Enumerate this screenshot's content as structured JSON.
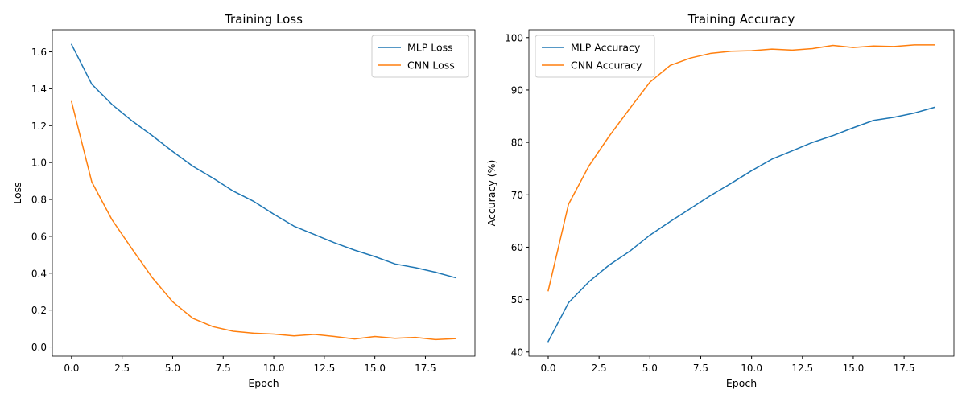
{
  "chart_data": [
    {
      "type": "line",
      "title": "Training Loss",
      "xlabel": "Epoch",
      "ylabel": "Loss",
      "xlim": [
        -0.95,
        19.95
      ],
      "ylim": [
        -0.05,
        1.72
      ],
      "xticks": [
        0.0,
        2.5,
        5.0,
        7.5,
        10.0,
        12.5,
        15.0,
        17.5
      ],
      "xtick_labels": [
        "0.0",
        "2.5",
        "5.0",
        "7.5",
        "10.0",
        "12.5",
        "15.0",
        "17.5"
      ],
      "yticks": [
        0.0,
        0.2,
        0.4,
        0.6,
        0.8,
        1.0,
        1.2,
        1.4,
        1.6
      ],
      "ytick_labels": [
        "0.0",
        "0.2",
        "0.4",
        "0.6",
        "0.8",
        "1.0",
        "1.2",
        "1.4",
        "1.6"
      ],
      "grid": false,
      "legend_position": "top-right",
      "x": [
        0,
        1,
        2,
        3,
        4,
        5,
        6,
        7,
        8,
        9,
        10,
        11,
        12,
        13,
        14,
        15,
        16,
        17,
        18,
        19
      ],
      "series": [
        {
          "name": "MLP Loss",
          "color": "#1f77b4",
          "values": [
            1.64,
            1.425,
            1.315,
            1.225,
            1.145,
            1.06,
            0.98,
            0.915,
            0.845,
            0.79,
            0.72,
            0.655,
            0.61,
            0.565,
            0.525,
            0.49,
            0.45,
            0.43,
            0.405,
            0.375
          ]
        },
        {
          "name": "CNN Loss",
          "color": "#ff7f0e",
          "values": [
            1.33,
            0.895,
            0.69,
            0.53,
            0.375,
            0.245,
            0.155,
            0.11,
            0.085,
            0.075,
            0.07,
            0.06,
            0.068,
            0.057,
            0.043,
            0.057,
            0.047,
            0.052,
            0.04,
            0.045
          ]
        }
      ]
    },
    {
      "type": "line",
      "title": "Training Accuracy",
      "xlabel": "Epoch",
      "ylabel": "Accuracy (%)",
      "xlim": [
        -0.95,
        19.95
      ],
      "ylim": [
        39.2,
        101.5
      ],
      "xticks": [
        0.0,
        2.5,
        5.0,
        7.5,
        10.0,
        12.5,
        15.0,
        17.5
      ],
      "xtick_labels": [
        "0.0",
        "2.5",
        "5.0",
        "7.5",
        "10.0",
        "12.5",
        "15.0",
        "17.5"
      ],
      "yticks": [
        40,
        50,
        60,
        70,
        80,
        90,
        100
      ],
      "ytick_labels": [
        "40",
        "50",
        "60",
        "70",
        "80",
        "90",
        "100"
      ],
      "grid": false,
      "legend_position": "top-left",
      "x": [
        0,
        1,
        2,
        3,
        4,
        5,
        6,
        7,
        8,
        9,
        10,
        11,
        12,
        13,
        14,
        15,
        16,
        17,
        18,
        19
      ],
      "series": [
        {
          "name": "MLP Accuracy",
          "color": "#1f77b4",
          "values": [
            42.0,
            49.4,
            53.4,
            56.6,
            59.2,
            62.3,
            64.9,
            67.4,
            69.9,
            72.2,
            74.6,
            76.8,
            78.4,
            80.0,
            81.3,
            82.8,
            84.2,
            84.8,
            85.6,
            86.7
          ]
        },
        {
          "name": "CNN Accuracy",
          "color": "#ff7f0e",
          "values": [
            51.7,
            68.2,
            75.5,
            81.2,
            86.4,
            91.5,
            94.7,
            96.1,
            97.0,
            97.4,
            97.5,
            97.8,
            97.6,
            97.9,
            98.5,
            98.1,
            98.4,
            98.3,
            98.6,
            98.6
          ]
        }
      ]
    }
  ]
}
